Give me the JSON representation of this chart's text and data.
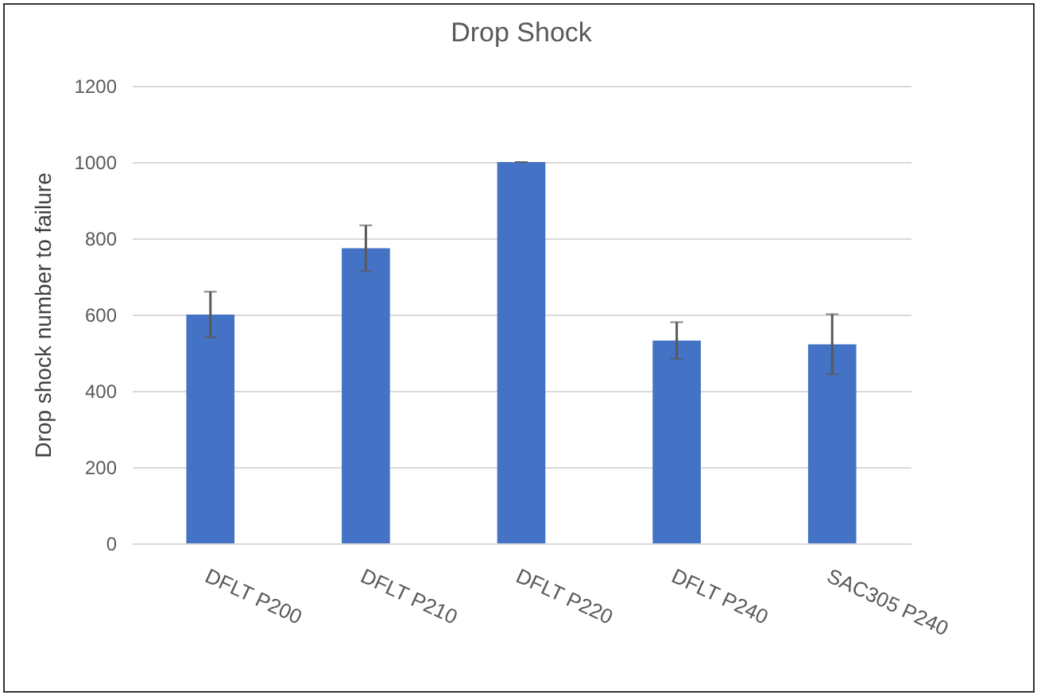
{
  "chart_data": {
    "type": "bar",
    "title": "Drop Shock",
    "ylabel": "Drop shock number to failure",
    "categories": [
      "DFLT P200",
      "DFLT P210",
      "DFLT P220",
      "DFLT P240",
      "SAC305 P240"
    ],
    "values": [
      600,
      774,
      1000,
      532,
      522
    ],
    "errors": [
      60,
      60,
      0,
      48,
      79
    ],
    "color": "#4472c4",
    "ylim": [
      0,
      1200
    ],
    "yticks": [
      0,
      200,
      400,
      600,
      800,
      1000,
      1200
    ],
    "grid": "y"
  }
}
